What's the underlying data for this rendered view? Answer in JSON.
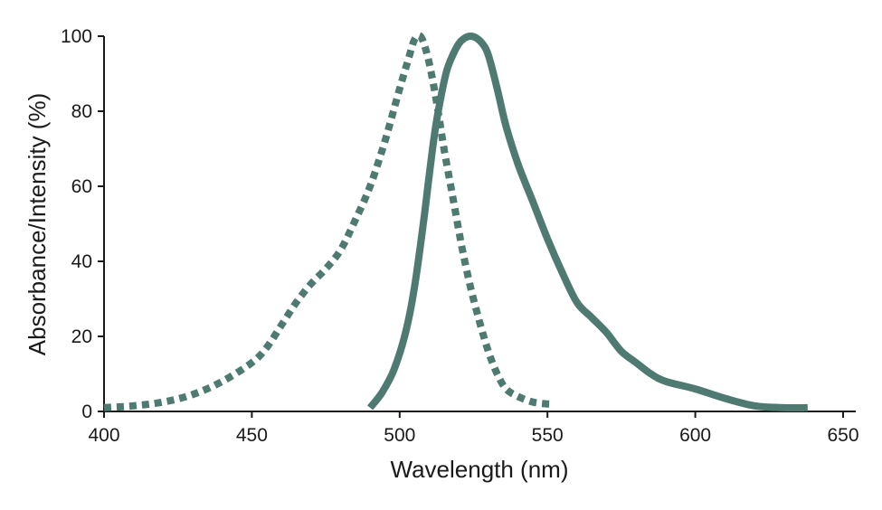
{
  "chart_data": {
    "type": "line",
    "title": "",
    "xlabel": "Wavelength (nm)",
    "ylabel": "Absorbance/Intensity (%)",
    "xlim": [
      400,
      650
    ],
    "ylim": [
      0,
      100
    ],
    "xticks": [
      400,
      450,
      500,
      550,
      600,
      650
    ],
    "yticks": [
      0,
      20,
      40,
      60,
      80,
      100
    ],
    "grid": false,
    "color": "#4e7a72",
    "series": [
      {
        "style": "dotted",
        "x": [
          400,
          410,
          420,
          430,
          440,
          450,
          455,
          460,
          465,
          470,
          475,
          480,
          485,
          490,
          495,
          500,
          503,
          505,
          507,
          509,
          511,
          513,
          515,
          518,
          521,
          524,
          527,
          530,
          533,
          536,
          540,
          545,
          550,
          552
        ],
        "y": [
          1,
          1.5,
          2.5,
          4.5,
          8,
          13,
          17,
          23,
          29,
          34,
          38,
          43,
          51,
          60,
          72,
          86,
          94,
          99,
          100,
          96,
          89,
          80,
          70,
          57,
          44,
          33,
          24,
          16,
          10,
          6,
          4,
          2.5,
          2,
          2
        ]
      },
      {
        "style": "solid",
        "x": [
          490,
          494,
          498,
          502,
          505,
          508,
          510,
          512,
          514,
          516,
          518,
          520,
          522,
          524,
          526,
          528,
          530,
          533,
          536,
          540,
          545,
          550,
          555,
          560,
          565,
          570,
          575,
          580,
          585,
          590,
          600,
          610,
          620,
          630,
          638
        ],
        "y": [
          1,
          5,
          11,
          21,
          33,
          50,
          63,
          75,
          84,
          91,
          95,
          98,
          99.5,
          100,
          99.5,
          98,
          95,
          86,
          76,
          66,
          56,
          46,
          37,
          29,
          25,
          21,
          16,
          13,
          10,
          8,
          6,
          3.5,
          1.5,
          1,
          1
        ]
      }
    ]
  }
}
